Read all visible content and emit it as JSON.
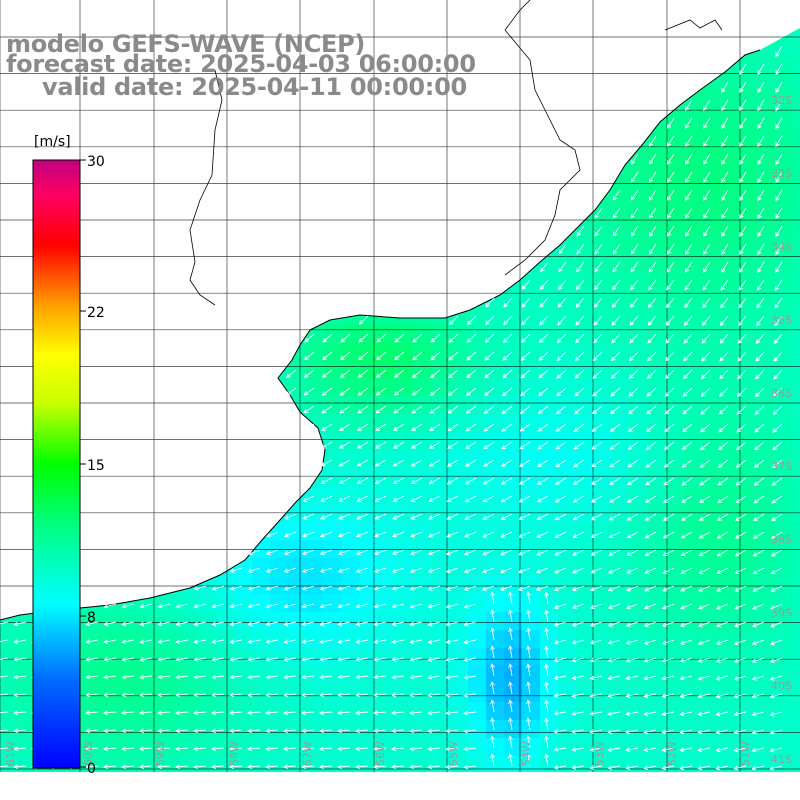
{
  "title": {
    "model": "modelo GEFS-WAVE (NCEP)",
    "forecast": "forecast date: 2025-04-03 06:00:00",
    "valid": "valid date: 2025-04-11 00:00:00"
  },
  "colorbar": {
    "unit": "[m/s]",
    "ticks": [
      "30",
      "22",
      "15",
      "8",
      "0"
    ],
    "range": [
      0,
      30
    ],
    "stops": [
      "#0000ff",
      "#00a0ff",
      "#00ffff",
      "#00ff00",
      "#ffff00",
      "#ff8000",
      "#ff0000",
      "#ff0080",
      "#c00080"
    ]
  },
  "map": {
    "lat_labels": [
      "32S",
      "33S",
      "34S",
      "35S",
      "36S",
      "37S",
      "38S",
      "39S",
      "40S",
      "41S"
    ],
    "lon_labels": [
      "61W",
      "60W",
      "59W",
      "58W",
      "57W",
      "56W",
      "55W",
      "54W",
      "53W",
      "52W",
      "51W"
    ],
    "land_color": "#ffffff",
    "grid_color": "#000000"
  }
}
